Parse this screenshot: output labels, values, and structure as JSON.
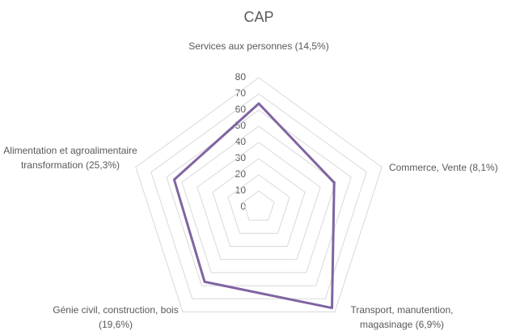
{
  "chart_data": {
    "type": "radar",
    "title": "CAP",
    "categories": [
      "Services aux personnes (14,5%)",
      "Commerce, Vente (8,1%)",
      "Transport, manutention, magasinage (6,9%)",
      "Génie civil, construction, bois (19,6%)",
      "Alimentation et agroalimentaire transformation (25,3%)"
    ],
    "series": [
      {
        "name": "CAP",
        "color": "#8064a2",
        "values": [
          64,
          49,
          77,
          57,
          55
        ]
      }
    ],
    "ylim": [
      0,
      80
    ],
    "yticks": [
      0,
      10,
      20,
      30,
      40,
      50,
      60,
      70,
      80
    ],
    "grid": true
  }
}
